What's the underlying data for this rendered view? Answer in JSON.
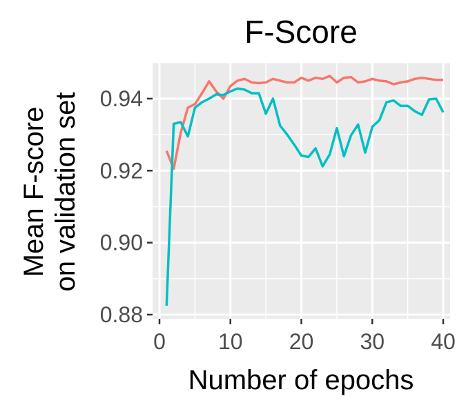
{
  "chart_data": {
    "type": "line",
    "title": "F-Score",
    "xlabel": "Number of epochs",
    "ylabel_lines": [
      "Mean F-score",
      "on validation set"
    ],
    "xlim": [
      0,
      40
    ],
    "ylim": [
      0.88,
      0.949
    ],
    "x_ticks": [
      0,
      10,
      20,
      30,
      40
    ],
    "x_tick_labels": [
      "0",
      "10",
      "20",
      "30",
      "40"
    ],
    "y_ticks": [
      0.88,
      0.9,
      0.92,
      0.94
    ],
    "y_tick_labels": [
      "0.88",
      "0.90",
      "0.92",
      "0.94"
    ],
    "grid": true,
    "legend": "none",
    "panel_background": "#ebebeb",
    "series": [
      {
        "color": "#f8766d",
        "x": [
          1,
          2,
          3,
          4,
          5,
          6,
          7,
          8,
          9,
          10,
          11,
          12,
          13,
          14,
          15,
          16,
          17,
          18,
          19,
          20,
          21,
          22,
          23,
          24,
          25,
          26,
          27,
          28,
          29,
          30,
          31,
          32,
          33,
          34,
          35,
          36,
          37,
          38,
          39,
          40
        ],
        "values": [
          0.9255,
          0.9205,
          0.9305,
          0.9375,
          0.9385,
          0.9415,
          0.9448,
          0.942,
          0.94,
          0.9435,
          0.945,
          0.9455,
          0.9445,
          0.9443,
          0.9445,
          0.9455,
          0.945,
          0.9445,
          0.9445,
          0.9458,
          0.945,
          0.9458,
          0.9455,
          0.9463,
          0.9445,
          0.9458,
          0.946,
          0.9445,
          0.9448,
          0.9455,
          0.945,
          0.9448,
          0.944,
          0.9445,
          0.9448,
          0.9455,
          0.9458,
          0.9455,
          0.9452,
          0.9452
        ]
      },
      {
        "color": "#00bfc4",
        "x": [
          1,
          2,
          3,
          4,
          5,
          6,
          7,
          8,
          9,
          10,
          11,
          12,
          13,
          14,
          15,
          16,
          17,
          18,
          19,
          20,
          21,
          22,
          23,
          24,
          25,
          26,
          27,
          28,
          29,
          30,
          31,
          32,
          33,
          34,
          35,
          36,
          37,
          38,
          39,
          40
        ],
        "values": [
          0.8825,
          0.933,
          0.9335,
          0.9295,
          0.9375,
          0.939,
          0.94,
          0.9412,
          0.941,
          0.942,
          0.9428,
          0.9425,
          0.9415,
          0.9415,
          0.9358,
          0.94,
          0.9325,
          0.93,
          0.9272,
          0.9242,
          0.9238,
          0.9262,
          0.9212,
          0.9245,
          0.9318,
          0.924,
          0.9298,
          0.9328,
          0.925,
          0.9322,
          0.934,
          0.939,
          0.9395,
          0.938,
          0.938,
          0.9365,
          0.9355,
          0.9398,
          0.94,
          0.9362
        ]
      }
    ]
  }
}
